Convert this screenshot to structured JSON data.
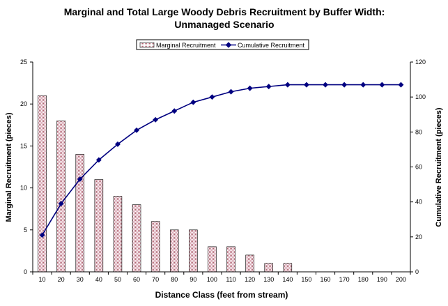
{
  "chart_data": {
    "type": "bar",
    "title_lines": [
      "Marginal and Total Large Woody Debris Recruitment by Buffer Width:",
      "Unmanaged Scenario"
    ],
    "xlabel": "Distance Class (feet from stream)",
    "ylabel": "Marginal Recruitment (pieces)",
    "y2label": "Cumulative Recruitment (pieces)",
    "categories": [
      "10",
      "20",
      "30",
      "40",
      "50",
      "60",
      "70",
      "80",
      "90",
      "100",
      "110",
      "120",
      "130",
      "140",
      "150",
      "160",
      "170",
      "180",
      "190",
      "200"
    ],
    "ylim": [
      0,
      25
    ],
    "yticks": [
      "0",
      "5",
      "10",
      "15",
      "20",
      "25"
    ],
    "y2lim": [
      0,
      120
    ],
    "y2ticks": [
      "0",
      "20",
      "40",
      "60",
      "80",
      "100",
      "120"
    ],
    "grid": false,
    "legend_position": "top-center",
    "series": [
      {
        "name": "Marginal Recruitment",
        "type": "bar",
        "axis": "left",
        "values": [
          21,
          18,
          14,
          11,
          9,
          8,
          6,
          5,
          5,
          3,
          3,
          2,
          1,
          1,
          0,
          0,
          0,
          0,
          0,
          0
        ]
      },
      {
        "name": "Cumulative Recruitment",
        "type": "line",
        "axis": "right",
        "color": "#000080",
        "values": [
          21,
          39,
          53,
          64,
          73,
          81,
          87,
          92,
          97,
          100,
          103,
          105,
          106,
          107,
          107,
          107,
          107,
          107,
          107,
          107
        ]
      }
    ]
  }
}
